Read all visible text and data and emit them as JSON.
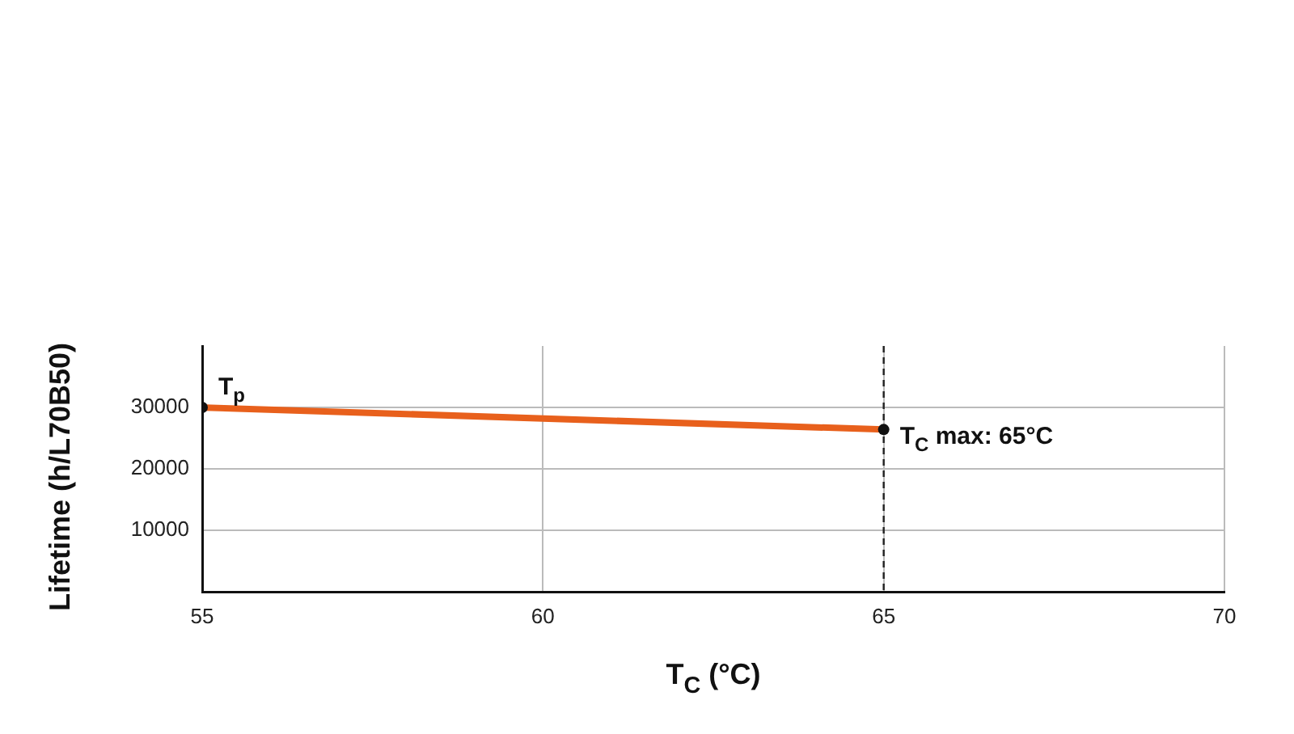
{
  "chart_data": {
    "type": "line",
    "xlabel": "T$_{C}$ (°C)",
    "ylabel": "Lifetime (h/L70B50)",
    "xlim": [
      55,
      70
    ],
    "xticks": [
      55,
      60,
      65,
      70
    ],
    "ylim": [
      0,
      40000
    ],
    "yticks": [
      10000,
      20000,
      30000
    ],
    "x": [
      55,
      65
    ],
    "series": [
      {
        "color": "#e8601c",
        "values": [
          30000,
          26400
        ]
      }
    ],
    "marker": "circle",
    "grid": true,
    "legend": false,
    "ref_lines": [
      {
        "axis": "x",
        "value": 65,
        "line_style": "dashed",
        "color": "#222222"
      }
    ],
    "annotations": [
      {
        "text": "T$_{p}$",
        "x": 55,
        "y": 30000
      },
      {
        "text": "T$_{C}$ max: 65°C",
        "x": 65,
        "y": 26400
      }
    ]
  }
}
